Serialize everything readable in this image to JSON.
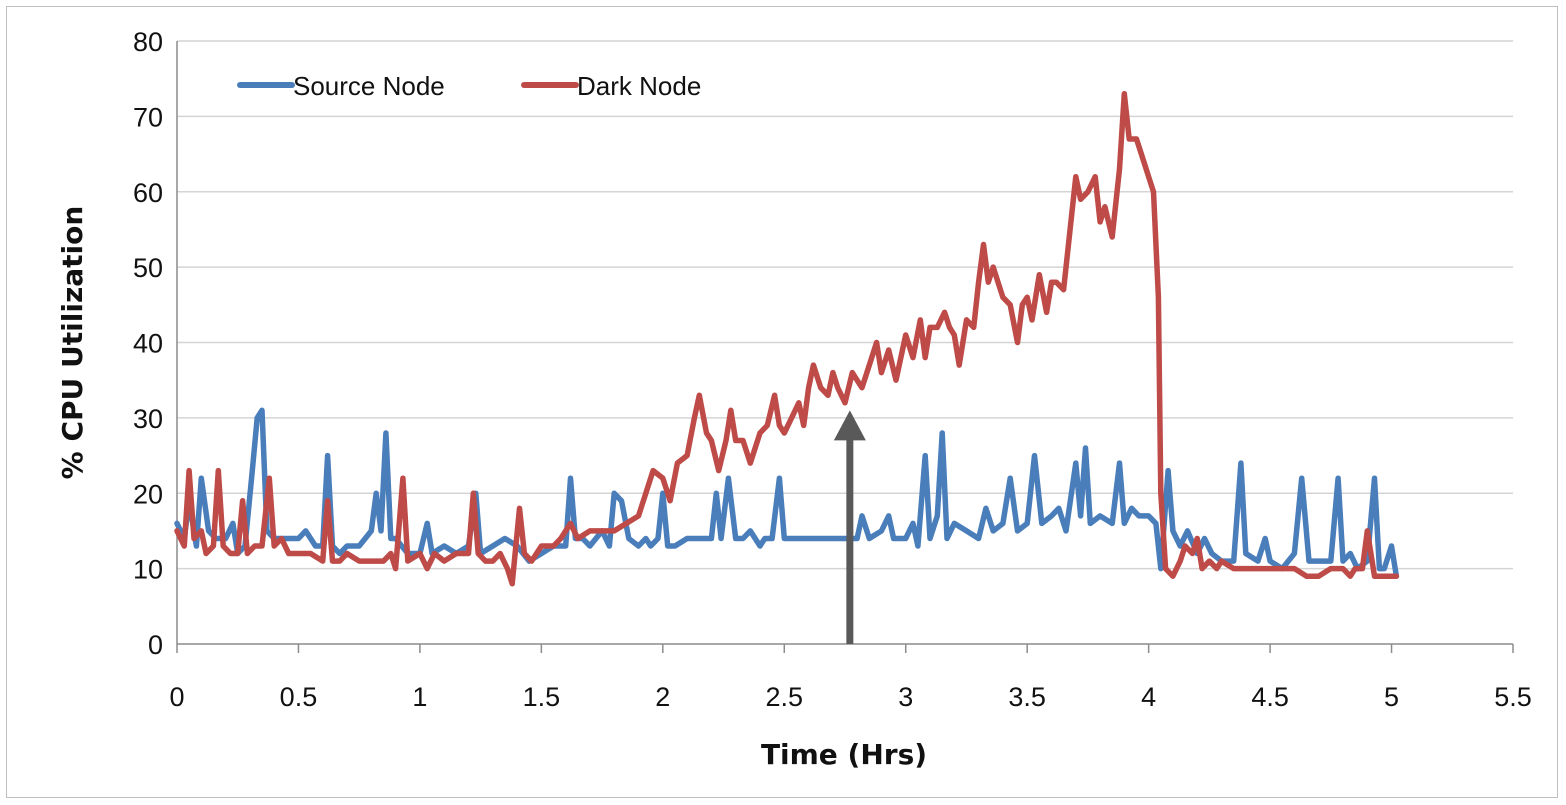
{
  "chart_data": {
    "type": "line",
    "title": "",
    "xlabel": "Time (Hrs)",
    "ylabel": "% CPU Utilization",
    "xlim": [
      0,
      5.5
    ],
    "ylim": [
      0,
      80
    ],
    "x_ticks": [
      "0",
      "0.5",
      "1",
      "1.5",
      "2",
      "2.5",
      "3",
      "3.5",
      "4",
      "4.5",
      "5",
      "5.5"
    ],
    "y_ticks": [
      "0",
      "10",
      "20",
      "30",
      "40",
      "50",
      "60",
      "70",
      "80"
    ],
    "grid": "horizontal",
    "legend_position": "top-left",
    "annotation": {
      "type": "arrow",
      "x": 2.77,
      "y_from": 0,
      "y_to": 31,
      "color": "#595959"
    },
    "series": [
      {
        "name": "Source Node",
        "color": "#4a7ebb",
        "points": [
          [
            0,
            16
          ],
          [
            0.03,
            14
          ],
          [
            0.05,
            19
          ],
          [
            0.08,
            13
          ],
          [
            0.1,
            22
          ],
          [
            0.13,
            15
          ],
          [
            0.16,
            14
          ],
          [
            0.2,
            14
          ],
          [
            0.23,
            16
          ],
          [
            0.25,
            12
          ],
          [
            0.28,
            13
          ],
          [
            0.31,
            23
          ],
          [
            0.33,
            30
          ],
          [
            0.35,
            31
          ],
          [
            0.37,
            15
          ],
          [
            0.4,
            14
          ],
          [
            0.45,
            14
          ],
          [
            0.5,
            14
          ],
          [
            0.53,
            15
          ],
          [
            0.57,
            13
          ],
          [
            0.6,
            13
          ],
          [
            0.62,
            25
          ],
          [
            0.64,
            13
          ],
          [
            0.67,
            12
          ],
          [
            0.7,
            13
          ],
          [
            0.75,
            13
          ],
          [
            0.8,
            15
          ],
          [
            0.82,
            20
          ],
          [
            0.84,
            15
          ],
          [
            0.86,
            28
          ],
          [
            0.88,
            14
          ],
          [
            0.9,
            14
          ],
          [
            0.95,
            12
          ],
          [
            1.0,
            12
          ],
          [
            1.03,
            16
          ],
          [
            1.05,
            12
          ],
          [
            1.1,
            13
          ],
          [
            1.15,
            12
          ],
          [
            1.2,
            13
          ],
          [
            1.23,
            20
          ],
          [
            1.25,
            12
          ],
          [
            1.3,
            13
          ],
          [
            1.35,
            14
          ],
          [
            1.4,
            13
          ],
          [
            1.45,
            11
          ],
          [
            1.5,
            12
          ],
          [
            1.55,
            13
          ],
          [
            1.6,
            13
          ],
          [
            1.62,
            22
          ],
          [
            1.64,
            14
          ],
          [
            1.67,
            14
          ],
          [
            1.7,
            13
          ],
          [
            1.75,
            15
          ],
          [
            1.78,
            13
          ],
          [
            1.8,
            20
          ],
          [
            1.83,
            19
          ],
          [
            1.86,
            14
          ],
          [
            1.9,
            13
          ],
          [
            1.93,
            14
          ],
          [
            1.95,
            13
          ],
          [
            1.98,
            14
          ],
          [
            2.0,
            20
          ],
          [
            2.02,
            13
          ],
          [
            2.05,
            13
          ],
          [
            2.1,
            14
          ],
          [
            2.15,
            14
          ],
          [
            2.2,
            14
          ],
          [
            2.22,
            20
          ],
          [
            2.24,
            14
          ],
          [
            2.27,
            22
          ],
          [
            2.3,
            14
          ],
          [
            2.33,
            14
          ],
          [
            2.36,
            15
          ],
          [
            2.4,
            13
          ],
          [
            2.42,
            14
          ],
          [
            2.45,
            14
          ],
          [
            2.48,
            22
          ],
          [
            2.5,
            14
          ],
          [
            2.55,
            14
          ],
          [
            2.6,
            14
          ],
          [
            2.65,
            14
          ],
          [
            2.7,
            14
          ],
          [
            2.75,
            14
          ],
          [
            2.8,
            14
          ],
          [
            2.82,
            17
          ],
          [
            2.85,
            14
          ],
          [
            2.9,
            15
          ],
          [
            2.93,
            17
          ],
          [
            2.95,
            14
          ],
          [
            3.0,
            14
          ],
          [
            3.03,
            16
          ],
          [
            3.05,
            13
          ],
          [
            3.08,
            25
          ],
          [
            3.1,
            14
          ],
          [
            3.13,
            17
          ],
          [
            3.15,
            28
          ],
          [
            3.17,
            14
          ],
          [
            3.2,
            16
          ],
          [
            3.25,
            15
          ],
          [
            3.3,
            14
          ],
          [
            3.33,
            18
          ],
          [
            3.36,
            15
          ],
          [
            3.4,
            16
          ],
          [
            3.43,
            22
          ],
          [
            3.46,
            15
          ],
          [
            3.5,
            16
          ],
          [
            3.53,
            25
          ],
          [
            3.56,
            16
          ],
          [
            3.6,
            17
          ],
          [
            3.63,
            18
          ],
          [
            3.66,
            15
          ],
          [
            3.7,
            24
          ],
          [
            3.72,
            17
          ],
          [
            3.74,
            26
          ],
          [
            3.76,
            16
          ],
          [
            3.8,
            17
          ],
          [
            3.85,
            16
          ],
          [
            3.88,
            24
          ],
          [
            3.9,
            16
          ],
          [
            3.93,
            18
          ],
          [
            3.96,
            17
          ],
          [
            4.0,
            17
          ],
          [
            4.03,
            16
          ],
          [
            4.05,
            10
          ],
          [
            4.08,
            23
          ],
          [
            4.1,
            15
          ],
          [
            4.13,
            13
          ],
          [
            4.16,
            15
          ],
          [
            4.2,
            12
          ],
          [
            4.23,
            14
          ],
          [
            4.26,
            12
          ],
          [
            4.3,
            11
          ],
          [
            4.35,
            11
          ],
          [
            4.38,
            24
          ],
          [
            4.4,
            12
          ],
          [
            4.45,
            11
          ],
          [
            4.48,
            14
          ],
          [
            4.5,
            11
          ],
          [
            4.55,
            10
          ],
          [
            4.6,
            12
          ],
          [
            4.63,
            22
          ],
          [
            4.66,
            11
          ],
          [
            4.7,
            11
          ],
          [
            4.75,
            11
          ],
          [
            4.78,
            22
          ],
          [
            4.8,
            11
          ],
          [
            4.83,
            12
          ],
          [
            4.86,
            10
          ],
          [
            4.9,
            11
          ],
          [
            4.93,
            22
          ],
          [
            4.95,
            10
          ],
          [
            4.97,
            10
          ],
          [
            5.0,
            13
          ],
          [
            5.02,
            9
          ]
        ]
      },
      {
        "name": "Dark Node",
        "color": "#be4b48",
        "points": [
          [
            0,
            15
          ],
          [
            0.03,
            13
          ],
          [
            0.05,
            23
          ],
          [
            0.07,
            14
          ],
          [
            0.1,
            15
          ],
          [
            0.12,
            12
          ],
          [
            0.15,
            13
          ],
          [
            0.17,
            23
          ],
          [
            0.19,
            13
          ],
          [
            0.22,
            12
          ],
          [
            0.25,
            12
          ],
          [
            0.27,
            19
          ],
          [
            0.29,
            12
          ],
          [
            0.32,
            13
          ],
          [
            0.35,
            13
          ],
          [
            0.38,
            22
          ],
          [
            0.4,
            13
          ],
          [
            0.43,
            14
          ],
          [
            0.46,
            12
          ],
          [
            0.5,
            12
          ],
          [
            0.55,
            12
          ],
          [
            0.6,
            11
          ],
          [
            0.62,
            19
          ],
          [
            0.64,
            11
          ],
          [
            0.67,
            11
          ],
          [
            0.7,
            12
          ],
          [
            0.75,
            11
          ],
          [
            0.8,
            11
          ],
          [
            0.85,
            11
          ],
          [
            0.88,
            12
          ],
          [
            0.9,
            10
          ],
          [
            0.93,
            22
          ],
          [
            0.95,
            11
          ],
          [
            1.0,
            12
          ],
          [
            1.03,
            10
          ],
          [
            1.06,
            12
          ],
          [
            1.1,
            11
          ],
          [
            1.15,
            12
          ],
          [
            1.2,
            12
          ],
          [
            1.22,
            20
          ],
          [
            1.24,
            12
          ],
          [
            1.27,
            11
          ],
          [
            1.3,
            11
          ],
          [
            1.33,
            12
          ],
          [
            1.36,
            10
          ],
          [
            1.38,
            8
          ],
          [
            1.41,
            18
          ],
          [
            1.43,
            12
          ],
          [
            1.46,
            11
          ],
          [
            1.5,
            13
          ],
          [
            1.55,
            13
          ],
          [
            1.58,
            14
          ],
          [
            1.62,
            16
          ],
          [
            1.65,
            14
          ],
          [
            1.7,
            15
          ],
          [
            1.75,
            15
          ],
          [
            1.8,
            15
          ],
          [
            1.85,
            16
          ],
          [
            1.9,
            17
          ],
          [
            1.93,
            20
          ],
          [
            1.96,
            23
          ],
          [
            2.0,
            22
          ],
          [
            2.03,
            19
          ],
          [
            2.06,
            24
          ],
          [
            2.1,
            25
          ],
          [
            2.13,
            30
          ],
          [
            2.15,
            33
          ],
          [
            2.18,
            28
          ],
          [
            2.2,
            27
          ],
          [
            2.23,
            23
          ],
          [
            2.26,
            27
          ],
          [
            2.28,
            31
          ],
          [
            2.3,
            27
          ],
          [
            2.33,
            27
          ],
          [
            2.36,
            24
          ],
          [
            2.4,
            28
          ],
          [
            2.43,
            29
          ],
          [
            2.46,
            33
          ],
          [
            2.48,
            29
          ],
          [
            2.5,
            28
          ],
          [
            2.53,
            30
          ],
          [
            2.56,
            32
          ],
          [
            2.58,
            29
          ],
          [
            2.6,
            34
          ],
          [
            2.62,
            37
          ],
          [
            2.65,
            34
          ],
          [
            2.68,
            33
          ],
          [
            2.7,
            36
          ],
          [
            2.72,
            34
          ],
          [
            2.75,
            32
          ],
          [
            2.78,
            36
          ],
          [
            2.8,
            35
          ],
          [
            2.82,
            34
          ],
          [
            2.85,
            37
          ],
          [
            2.88,
            40
          ],
          [
            2.9,
            36
          ],
          [
            2.93,
            39
          ],
          [
            2.96,
            35
          ],
          [
            3.0,
            41
          ],
          [
            3.03,
            38
          ],
          [
            3.06,
            43
          ],
          [
            3.08,
            38
          ],
          [
            3.1,
            42
          ],
          [
            3.13,
            42
          ],
          [
            3.16,
            44
          ],
          [
            3.18,
            42
          ],
          [
            3.2,
            41
          ],
          [
            3.22,
            37
          ],
          [
            3.25,
            43
          ],
          [
            3.28,
            42
          ],
          [
            3.3,
            48
          ],
          [
            3.32,
            53
          ],
          [
            3.34,
            48
          ],
          [
            3.36,
            50
          ],
          [
            3.38,
            48
          ],
          [
            3.4,
            46
          ],
          [
            3.43,
            45
          ],
          [
            3.46,
            40
          ],
          [
            3.48,
            45
          ],
          [
            3.5,
            46
          ],
          [
            3.52,
            43
          ],
          [
            3.55,
            49
          ],
          [
            3.58,
            44
          ],
          [
            3.6,
            48
          ],
          [
            3.62,
            48
          ],
          [
            3.65,
            47
          ],
          [
            3.68,
            56
          ],
          [
            3.7,
            62
          ],
          [
            3.72,
            59
          ],
          [
            3.75,
            60
          ],
          [
            3.78,
            62
          ],
          [
            3.8,
            56
          ],
          [
            3.82,
            58
          ],
          [
            3.85,
            54
          ],
          [
            3.88,
            63
          ],
          [
            3.9,
            73
          ],
          [
            3.92,
            67
          ],
          [
            3.95,
            67
          ],
          [
            3.98,
            64
          ],
          [
            4.0,
            62
          ],
          [
            4.02,
            60
          ],
          [
            4.04,
            46
          ],
          [
            4.05,
            20
          ],
          [
            4.07,
            10
          ],
          [
            4.1,
            9
          ],
          [
            4.13,
            11
          ],
          [
            4.15,
            13
          ],
          [
            4.18,
            12
          ],
          [
            4.2,
            14
          ],
          [
            4.22,
            10
          ],
          [
            4.25,
            11
          ],
          [
            4.28,
            10
          ],
          [
            4.3,
            11
          ],
          [
            4.35,
            10
          ],
          [
            4.4,
            10
          ],
          [
            4.45,
            10
          ],
          [
            4.5,
            10
          ],
          [
            4.55,
            10
          ],
          [
            4.6,
            10
          ],
          [
            4.65,
            9
          ],
          [
            4.7,
            9
          ],
          [
            4.75,
            10
          ],
          [
            4.8,
            10
          ],
          [
            4.83,
            9
          ],
          [
            4.85,
            10
          ],
          [
            4.88,
            10
          ],
          [
            4.9,
            15
          ],
          [
            4.93,
            9
          ],
          [
            4.96,
            9
          ],
          [
            5.0,
            9
          ],
          [
            5.02,
            9
          ]
        ]
      }
    ]
  }
}
